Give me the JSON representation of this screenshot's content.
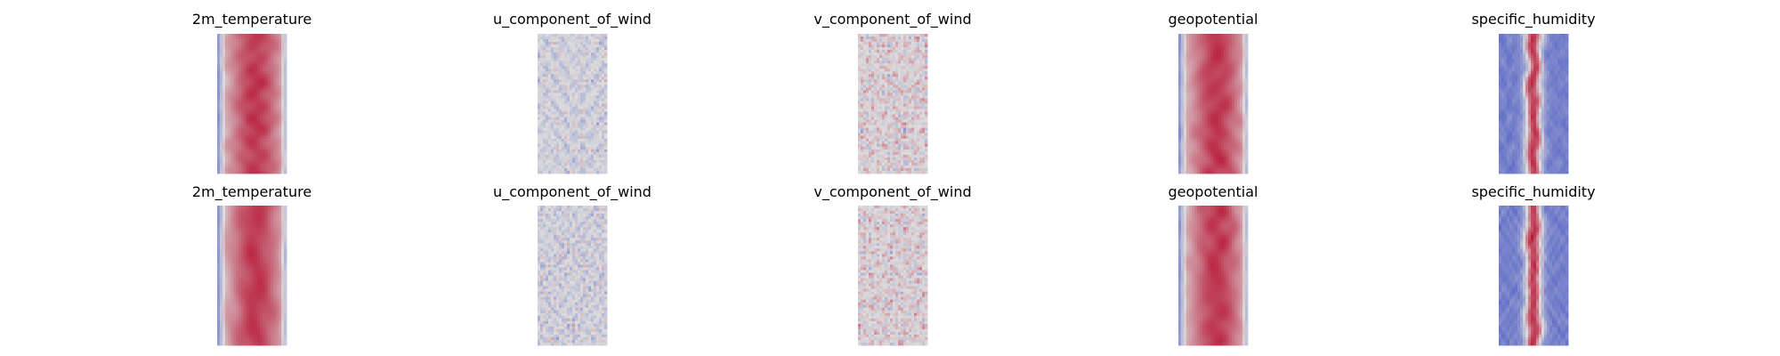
{
  "chart_data": {
    "type": "heatmap",
    "colormap": "coolwarm",
    "colors": {
      "cold": "#3b4cc0",
      "neutral": "#dddddd",
      "warm": "#b40426"
    },
    "axes_visible": false,
    "rows": [
      {
        "panels": [
          {
            "title": "2m_temperature",
            "pattern": "warm-core"
          },
          {
            "title": "u_component_of_wind",
            "pattern": "turbulent-cool"
          },
          {
            "title": "v_component_of_wind",
            "pattern": "turbulent-mixed"
          },
          {
            "title": "geopotential",
            "pattern": "warm-core"
          },
          {
            "title": "specific_humidity",
            "pattern": "cold-core-filament"
          }
        ]
      },
      {
        "panels": [
          {
            "title": "2m_temperature",
            "pattern": "warm-core"
          },
          {
            "title": "u_component_of_wind",
            "pattern": "turbulent-cool"
          },
          {
            "title": "v_component_of_wind",
            "pattern": "turbulent-mixed"
          },
          {
            "title": "geopotential",
            "pattern": "warm-core"
          },
          {
            "title": "specific_humidity",
            "pattern": "cold-core-filament"
          }
        ]
      }
    ]
  }
}
